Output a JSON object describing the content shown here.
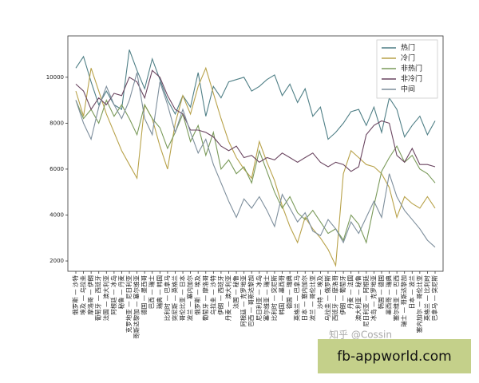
{
  "chart_data": {
    "type": "line",
    "categories": [
      "俄罗斯 — 沙特",
      "埃及 — 乌拉圭",
      "摩洛哥 — 伊朗",
      "葡萄牙 — 西班牙",
      "法国 — 澳大利亚",
      "阿根廷 — 冰岛",
      "秘鲁 — 丹麦",
      "克罗地亚 — 尼日利亚",
      "哥斯达黎加 — 塞尔维亚",
      "德国 — 墨西哥",
      "巴西 — 瑞士",
      "瑞典 — 韩国",
      "比利时 — 巴拿马",
      "突尼斯 — 英格兰",
      "哥伦比亚 — 日本",
      "波兰 — 塞内加尔",
      "俄罗斯 — 埃及",
      "葡萄牙 — 摩洛哥",
      "乌拉圭 — 沙特",
      "伊朗 — 西班牙",
      "丹麦 — 澳大利亚",
      "法国 — 秘鲁",
      "阿根廷 — 克罗地亚",
      "巴西 — 哥斯达黎加",
      "尼日利亚 — 冰岛",
      "塞尔维亚 — 瑞士",
      "比利时 — 突尼斯",
      "韩国 — 墨西哥",
      "德国 — 瑞典",
      "英格兰 — 巴拿马",
      "日本 — 塞内加尔",
      "波兰 — 哥伦比亚",
      "沙特 — 埃及",
      "乌拉圭 — 俄罗斯",
      "西班牙 — 摩洛哥",
      "伊朗 — 葡萄牙",
      "丹麦 — 法国",
      "澳大利亚 — 秘鲁",
      "尼日利亚 — 阿根廷",
      "冰岛 — 克罗地亚",
      "韩国 — 德国",
      "墨西哥 — 瑞典",
      "塞尔维亚 — 巴西",
      "瑞士 — 哥斯达黎加",
      "日本 — 波兰",
      "塞内加尔 — 哥伦比亚",
      "英格兰 — 比利时",
      "巴拿马 — 突尼斯"
    ],
    "series": [
      {
        "name": "热门",
        "color": "#4f7f86",
        "values": [
          10400,
          10900,
          9800,
          8800,
          9400,
          8800,
          8600,
          11200,
          10300,
          9500,
          10800,
          9900,
          9000,
          8400,
          9200,
          8700,
          10200,
          8300,
          9600,
          9100,
          9800,
          9900,
          10000,
          9400,
          9600,
          9900,
          10100,
          9200,
          9700,
          8900,
          9500,
          8300,
          8700,
          7300,
          7600,
          8000,
          8500,
          8600,
          7900,
          8700,
          7600,
          9100,
          8600,
          7400,
          7900,
          8300,
          7500,
          8100
        ]
      },
      {
        "name": "冷门",
        "color": "#b8a24a",
        "values": [
          9400,
          8300,
          10400,
          9400,
          8400,
          7600,
          6800,
          6200,
          5600,
          8800,
          8200,
          7000,
          6000,
          8000,
          9200,
          8400,
          9600,
          10400,
          9300,
          8200,
          7200,
          6500,
          6000,
          5600,
          7200,
          6300,
          5500,
          4400,
          3500,
          2800,
          3900,
          3400,
          3000,
          2500,
          1800,
          5800,
          6800,
          6500,
          6200,
          6100,
          5800,
          5200,
          3900,
          4800,
          4500,
          4300,
          4800,
          4300
        ]
      },
      {
        "name": "非热门",
        "color": "#7a9a5a",
        "values": [
          9000,
          8200,
          8600,
          8000,
          9000,
          8300,
          8800,
          8200,
          7500,
          8800,
          8200,
          7800,
          6900,
          7600,
          8400,
          7200,
          7900,
          6600,
          7600,
          6000,
          6400,
          5800,
          6100,
          5400,
          6800,
          5900,
          5000,
          4300,
          4800,
          4100,
          3800,
          4200,
          3700,
          3200,
          3400,
          2900,
          4000,
          3600,
          2800,
          4400,
          5900,
          6500,
          7000,
          6300,
          6600,
          6000,
          5800,
          5400
        ]
      },
      {
        "name": "非冷门",
        "color": "#6a4560",
        "values": [
          9700,
          9400,
          8600,
          9100,
          8800,
          9300,
          9200,
          10000,
          9800,
          9100,
          10300,
          10000,
          9200,
          8600,
          8400,
          7700,
          7700,
          7600,
          7400,
          7000,
          6800,
          7000,
          6500,
          6600,
          6300,
          6500,
          6400,
          6700,
          6500,
          6300,
          6500,
          6700,
          6300,
          6100,
          6300,
          6200,
          5900,
          6100,
          7500,
          7900,
          8100,
          8000,
          6600,
          6300,
          6900,
          6200,
          6200,
          6100
        ]
      },
      {
        "name": "中间",
        "color": "#7d8e9c",
        "values": [
          9000,
          8000,
          7300,
          8700,
          9600,
          8800,
          8200,
          9000,
          10200,
          8200,
          7500,
          9800,
          8800,
          7600,
          8600,
          7600,
          6700,
          7300,
          6200,
          5400,
          4600,
          3900,
          4700,
          4300,
          4800,
          4200,
          3500,
          4900,
          4300,
          3700,
          4100,
          3300,
          3100,
          3800,
          3400,
          2800,
          3700,
          3200,
          3900,
          4600,
          3900,
          5800,
          4800,
          4200,
          3800,
          3400,
          2900,
          2600
        ]
      }
    ],
    "ylim": [
      1550,
      11800
    ],
    "yticks": [
      2000,
      4000,
      6000,
      8000,
      10000
    ],
    "legend": "upper right",
    "grid": false,
    "watermark": "知乎 @Cossin"
  },
  "banner": "fb-appworld.com"
}
